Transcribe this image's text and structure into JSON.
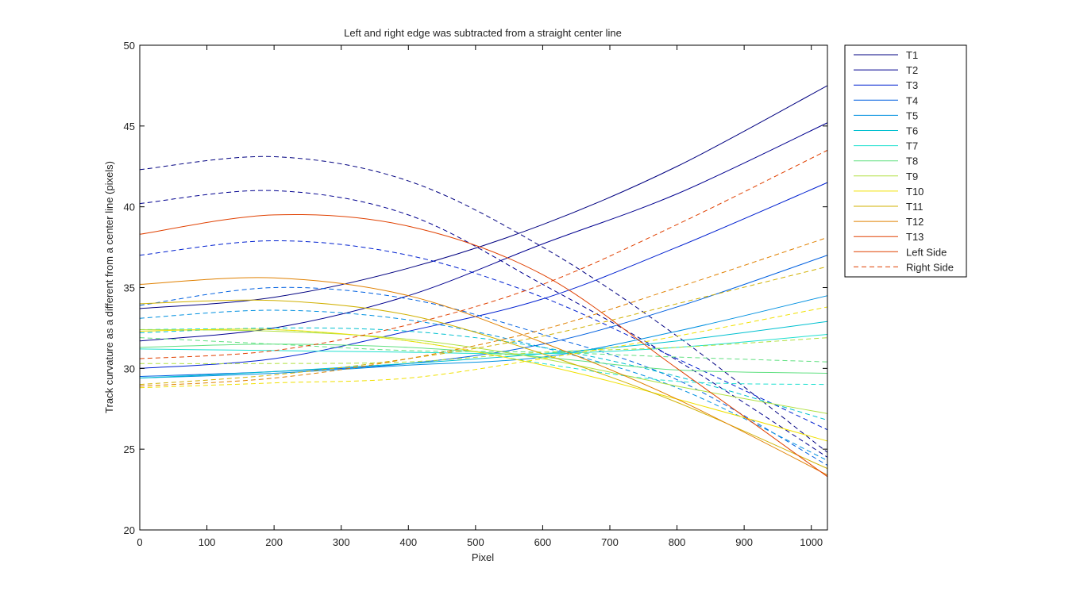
{
  "chart_data": {
    "type": "line",
    "title": "Left and right edge was subtracted from a straight center line",
    "xlabel": "Pixel",
    "ylabel": "Track curvature as a different from a center line (pixels)",
    "xlim": [
      0,
      1024
    ],
    "ylim": [
      20,
      50
    ],
    "xticks": [
      0,
      100,
      200,
      300,
      400,
      500,
      600,
      700,
      800,
      900,
      1000
    ],
    "yticks": [
      20,
      25,
      30,
      35,
      40,
      45,
      50
    ],
    "grid": false,
    "legend_position": "outside-right-top",
    "x": [
      0,
      200,
      400,
      600,
      800,
      1024
    ],
    "series": [
      {
        "name": "T1",
        "side": "left",
        "color": "#000080",
        "values": [
          33.7,
          34.4,
          36.2,
          38.9,
          42.5,
          47.5
        ]
      },
      {
        "name": "T1",
        "side": "right",
        "color": "#000080",
        "values": [
          42.3,
          43.1,
          41.6,
          37.5,
          32.0,
          24.8
        ]
      },
      {
        "name": "T2",
        "side": "left",
        "color": "#00008f",
        "values": [
          31.7,
          32.5,
          34.5,
          37.7,
          40.8,
          45.2
        ]
      },
      {
        "name": "T2",
        "side": "right",
        "color": "#00008f",
        "values": [
          40.2,
          41.0,
          39.5,
          35.2,
          30.5,
          24.5
        ]
      },
      {
        "name": "T3",
        "side": "left",
        "color": "#0020d0",
        "values": [
          30.0,
          30.6,
          32.3,
          34.3,
          37.5,
          41.5
        ]
      },
      {
        "name": "T3",
        "side": "right",
        "color": "#0020d0",
        "values": [
          37.0,
          37.9,
          37.0,
          34.4,
          30.6,
          26.2
        ]
      },
      {
        "name": "T4",
        "side": "left",
        "color": "#0060e0",
        "values": [
          29.5,
          29.8,
          30.3,
          31.5,
          33.8,
          37.0
        ]
      },
      {
        "name": "T4",
        "side": "right",
        "color": "#0060e0",
        "values": [
          33.9,
          35.0,
          34.3,
          32.1,
          29.3,
          24.0
        ]
      },
      {
        "name": "T5",
        "side": "left",
        "color": "#0090e0",
        "values": [
          29.4,
          29.7,
          30.2,
          30.7,
          32.3,
          34.5
        ]
      },
      {
        "name": "T5",
        "side": "right",
        "color": "#0090e0",
        "values": [
          33.1,
          33.6,
          33.0,
          31.3,
          28.8,
          24.3
        ]
      },
      {
        "name": "T6",
        "side": "left",
        "color": "#00c0d0",
        "values": [
          29.4,
          29.8,
          30.3,
          30.9,
          31.7,
          32.9
        ]
      },
      {
        "name": "T6",
        "side": "right",
        "color": "#00c0d0",
        "values": [
          32.2,
          32.5,
          32.3,
          31.3,
          29.5,
          26.8
        ]
      },
      {
        "name": "T7",
        "side": "left",
        "color": "#20e0d0",
        "values": [
          31.2,
          31.1,
          31.0,
          30.9,
          31.3,
          32.1
        ]
      },
      {
        "name": "T7",
        "side": "right",
        "color": "#20e0d0",
        "values": [
          32.4,
          32.4,
          31.7,
          30.3,
          29.2,
          29.0
        ]
      },
      {
        "name": "T8",
        "side": "left",
        "color": "#60e080",
        "values": [
          31.3,
          31.5,
          31.3,
          30.7,
          29.9,
          29.7
        ]
      },
      {
        "name": "T8",
        "side": "right",
        "color": "#60e080",
        "values": [
          31.9,
          31.5,
          31.1,
          31.0,
          30.7,
          30.4
        ]
      },
      {
        "name": "T9",
        "side": "left",
        "color": "#b0e040",
        "values": [
          32.4,
          32.3,
          31.8,
          30.6,
          28.9,
          27.2
        ]
      },
      {
        "name": "T9",
        "side": "right",
        "color": "#b0e040",
        "values": [
          30.3,
          30.3,
          30.4,
          31.0,
          31.3,
          31.9
        ]
      },
      {
        "name": "T10",
        "side": "left",
        "color": "#f0e000",
        "values": [
          32.3,
          32.4,
          31.7,
          30.2,
          28.1,
          25.5
        ]
      },
      {
        "name": "T10",
        "side": "right",
        "color": "#f0e000",
        "values": [
          28.8,
          29.1,
          29.4,
          30.6,
          32.0,
          33.8
        ]
      },
      {
        "name": "T11",
        "side": "left",
        "color": "#d0b000",
        "values": [
          34.0,
          34.2,
          33.3,
          30.9,
          27.9,
          23.8
        ]
      },
      {
        "name": "T11",
        "side": "right",
        "color": "#d0b000",
        "values": [
          29.0,
          29.6,
          30.6,
          32.0,
          34.0,
          36.3
        ]
      },
      {
        "name": "T12",
        "side": "left",
        "color": "#e08000",
        "values": [
          35.2,
          35.6,
          34.5,
          31.6,
          28.1,
          23.4
        ]
      },
      {
        "name": "T12",
        "side": "right",
        "color": "#e08000",
        "values": [
          28.9,
          29.4,
          30.6,
          32.4,
          35.0,
          38.1
        ]
      },
      {
        "name": "T13",
        "side": "left",
        "color": "#e04000",
        "values": [
          38.3,
          39.5,
          38.8,
          35.8,
          30.0,
          23.3
        ]
      },
      {
        "name": "T13",
        "side": "right",
        "color": "#e04000",
        "values": [
          30.6,
          31.1,
          32.7,
          35.2,
          38.9,
          43.5
        ]
      }
    ],
    "legend": [
      {
        "label": "T1",
        "color": "#000080",
        "dash": false
      },
      {
        "label": "T2",
        "color": "#00008f",
        "dash": false
      },
      {
        "label": "T3",
        "color": "#0020d0",
        "dash": false
      },
      {
        "label": "T4",
        "color": "#0060e0",
        "dash": false
      },
      {
        "label": "T5",
        "color": "#0090e0",
        "dash": false
      },
      {
        "label": "T6",
        "color": "#00c0d0",
        "dash": false
      },
      {
        "label": "T7",
        "color": "#20e0d0",
        "dash": false
      },
      {
        "label": "T8",
        "color": "#60e080",
        "dash": false
      },
      {
        "label": "T9",
        "color": "#b0e040",
        "dash": false
      },
      {
        "label": "T10",
        "color": "#f0e000",
        "dash": false
      },
      {
        "label": "T11",
        "color": "#d0b000",
        "dash": false
      },
      {
        "label": "T12",
        "color": "#e08000",
        "dash": false
      },
      {
        "label": "T13",
        "color": "#e04000",
        "dash": false
      },
      {
        "label": "Left Side",
        "color": "#e04000",
        "dash": false
      },
      {
        "label": "Right Side",
        "color": "#e04000",
        "dash": true
      }
    ]
  }
}
